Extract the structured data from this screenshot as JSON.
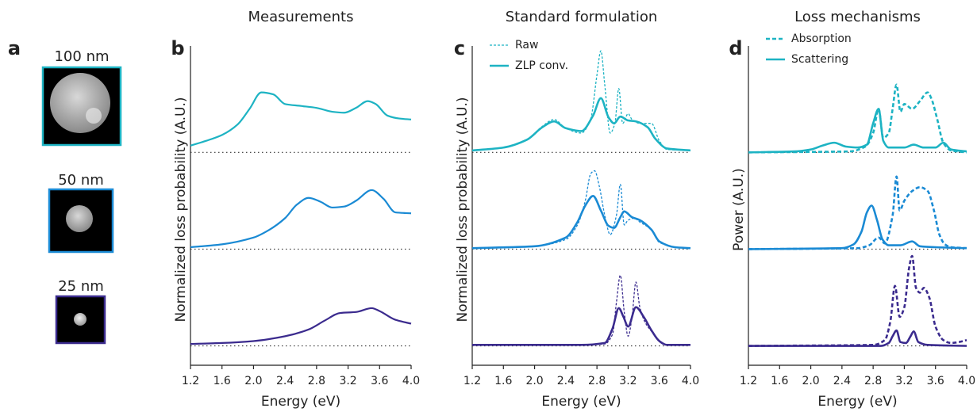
{
  "panel_a": {
    "panel_label": "a",
    "images": [
      {
        "caption": "100 nm",
        "color": "#1db3c3"
      },
      {
        "caption": "50 nm",
        "color": "#1a8ad4"
      },
      {
        "caption": "25 nm",
        "color": "#3b2b8e"
      }
    ]
  },
  "chart_data": [
    {
      "type": "line",
      "panel_label": "b",
      "title": "Measurements",
      "xlabel": "Energy (eV)",
      "ylabel": "Normalized loss probability (A.U.)",
      "xlim": [
        1.2,
        4.0
      ],
      "xticks": [
        1.2,
        1.6,
        {
          "value": 2.0,
          "label": "2.0"
        },
        2.4,
        2.8,
        3.2,
        3.6,
        {
          "value": 4.0,
          "label": "4.0"
        }
      ],
      "ylim": [
        -0.2,
        3.1
      ],
      "baselines": [
        0,
        1,
        2
      ],
      "series": [
        {
          "color": "#1db3c3",
          "style": "solid",
          "line_width": 2.2,
          "x": [
            1.2,
            1.4,
            1.6,
            1.8,
            1.95,
            2.1,
            2.25,
            2.4,
            2.6,
            2.8,
            3.0,
            3.15,
            3.3,
            3.45,
            3.55,
            3.7,
            3.85,
            4.0
          ],
          "values": [
            2.07,
            2.12,
            2.18,
            2.29,
            2.45,
            2.62,
            2.6,
            2.5,
            2.48,
            2.46,
            2.42,
            2.41,
            2.46,
            2.53,
            2.5,
            2.38,
            2.35,
            2.34
          ]
        },
        {
          "color": "#1a8ad4",
          "style": "solid",
          "line_width": 2.2,
          "x": [
            1.2,
            1.6,
            2.0,
            2.2,
            2.4,
            2.55,
            2.7,
            2.85,
            3.0,
            3.15,
            3.3,
            3.5,
            3.65,
            3.8,
            4.0
          ],
          "values": [
            1.02,
            1.05,
            1.12,
            1.2,
            1.32,
            1.46,
            1.53,
            1.49,
            1.43,
            1.44,
            1.5,
            1.61,
            1.52,
            1.38,
            1.37
          ]
        },
        {
          "color": "#3b2b8e",
          "style": "solid",
          "line_width": 2.2,
          "x": [
            1.2,
            1.6,
            2.0,
            2.4,
            2.7,
            2.9,
            3.1,
            3.3,
            3.5,
            3.6,
            3.8,
            4.0
          ],
          "values": [
            0.02,
            0.03,
            0.05,
            0.1,
            0.17,
            0.26,
            0.34,
            0.35,
            0.39,
            0.36,
            0.27,
            0.23
          ]
        }
      ]
    },
    {
      "type": "line",
      "panel_label": "c",
      "title": "Standard formulation",
      "xlabel": "Energy (eV)",
      "ylabel": "Normalized loss probability (A.U.)",
      "xlim": [
        1.2,
        4.0
      ],
      "xticks": [
        1.2,
        1.6,
        {
          "value": 2.0,
          "label": "2.0"
        },
        2.4,
        2.8,
        3.2,
        3.6,
        {
          "value": 4.0,
          "label": "4.0"
        }
      ],
      "ylim": [
        -0.2,
        3.1
      ],
      "baselines": [
        0,
        1,
        2
      ],
      "series": [
        {
          "name": "Raw",
          "color": "#1db3c3",
          "style": "dashed",
          "line_width": 1.3,
          "x": [
            1.2,
            1.6,
            1.9,
            2.1,
            2.25,
            2.4,
            2.6,
            2.72,
            2.8,
            2.85,
            2.9,
            2.97,
            3.03,
            3.08,
            3.13,
            3.2,
            3.25,
            3.35,
            3.5,
            3.6,
            3.7,
            4.0
          ],
          "values": [
            2.02,
            2.05,
            2.13,
            2.27,
            2.34,
            2.25,
            2.2,
            2.35,
            2.8,
            3.05,
            2.7,
            2.2,
            2.3,
            2.66,
            2.3,
            2.4,
            2.34,
            2.3,
            2.3,
            2.12,
            2.03,
            2.02
          ]
        },
        {
          "name": "ZLP conv.",
          "color": "#1db3c3",
          "style": "solid",
          "line_width": 2.6,
          "x": [
            1.2,
            1.6,
            1.9,
            2.1,
            2.25,
            2.4,
            2.6,
            2.75,
            2.85,
            2.95,
            3.02,
            3.1,
            3.2,
            3.3,
            3.45,
            3.55,
            3.7,
            4.0
          ],
          "values": [
            2.02,
            2.05,
            2.13,
            2.26,
            2.32,
            2.25,
            2.22,
            2.38,
            2.56,
            2.36,
            2.3,
            2.37,
            2.33,
            2.32,
            2.26,
            2.14,
            2.04,
            2.02
          ]
        },
        {
          "color": "#1a8ad4",
          "style": "dashed",
          "line_width": 1.3,
          "x": [
            1.2,
            2.0,
            2.4,
            2.55,
            2.65,
            2.72,
            2.77,
            2.83,
            2.9,
            2.97,
            3.05,
            3.1,
            3.15,
            3.2,
            3.28,
            3.35,
            3.5,
            3.6,
            3.8,
            4.0
          ],
          "values": [
            1.01,
            1.03,
            1.1,
            1.25,
            1.5,
            1.78,
            1.81,
            1.65,
            1.35,
            1.15,
            1.35,
            1.67,
            1.25,
            1.3,
            1.32,
            1.28,
            1.2,
            1.07,
            1.02,
            1.01
          ]
        },
        {
          "color": "#1a8ad4",
          "style": "solid",
          "line_width": 2.6,
          "x": [
            1.2,
            2.0,
            2.4,
            2.55,
            2.65,
            2.75,
            2.85,
            2.95,
            3.02,
            3.1,
            3.15,
            3.25,
            3.35,
            3.5,
            3.6,
            3.8,
            4.0
          ],
          "values": [
            1.01,
            1.03,
            1.12,
            1.28,
            1.45,
            1.55,
            1.4,
            1.24,
            1.22,
            1.33,
            1.39,
            1.33,
            1.3,
            1.2,
            1.08,
            1.02,
            1.01
          ]
        },
        {
          "color": "#3b2b8e",
          "style": "dashed",
          "line_width": 1.3,
          "x": [
            1.2,
            2.6,
            2.9,
            3.0,
            3.05,
            3.1,
            3.15,
            3.2,
            3.25,
            3.3,
            3.35,
            3.42,
            3.5,
            3.6,
            3.7,
            4.0
          ],
          "values": [
            0.01,
            0.01,
            0.02,
            0.12,
            0.45,
            0.73,
            0.35,
            0.1,
            0.3,
            0.66,
            0.4,
            0.24,
            0.15,
            0.05,
            0.01,
            0.01
          ]
        },
        {
          "color": "#3b2b8e",
          "style": "solid",
          "line_width": 2.6,
          "x": [
            1.2,
            2.6,
            2.9,
            3.0,
            3.08,
            3.14,
            3.2,
            3.3,
            3.4,
            3.5,
            3.6,
            3.7,
            4.0
          ],
          "values": [
            0.01,
            0.01,
            0.03,
            0.18,
            0.39,
            0.3,
            0.2,
            0.4,
            0.3,
            0.16,
            0.05,
            0.01,
            0.01
          ]
        }
      ]
    },
    {
      "type": "line",
      "panel_label": "d",
      "title": "Loss mechanisms",
      "xlabel": "Energy (eV)",
      "ylabel": "Power (A.U.)",
      "xlim": [
        1.2,
        4.0
      ],
      "xticks": [
        1.2,
        1.6,
        {
          "value": 2.0,
          "label": "2.0"
        },
        2.4,
        2.8,
        3.2,
        3.6,
        {
          "value": 4.0,
          "label": "4.0"
        }
      ],
      "ylim": [
        -0.2,
        3.1
      ],
      "baselines": [
        0,
        1,
        2
      ],
      "series": [
        {
          "name": "Absorption",
          "color": "#1db3c3",
          "style": "dashed",
          "line_width": 2.6,
          "x": [
            1.2,
            2.5,
            2.7,
            2.8,
            2.87,
            2.93,
            3.0,
            3.05,
            3.1,
            3.15,
            3.2,
            3.3,
            3.4,
            3.5,
            3.55,
            3.62,
            3.7,
            3.8,
            4.0
          ],
          "values": [
            2.0,
            2.01,
            2.06,
            2.2,
            2.45,
            2.15,
            2.2,
            2.45,
            2.7,
            2.42,
            2.5,
            2.45,
            2.53,
            2.62,
            2.55,
            2.35,
            2.1,
            2.02,
            2.0
          ]
        },
        {
          "name": "Scattering",
          "color": "#1db3c3",
          "style": "solid",
          "line_width": 2.6,
          "x": [
            1.2,
            1.8,
            2.0,
            2.15,
            2.3,
            2.45,
            2.6,
            2.72,
            2.8,
            2.87,
            2.93,
            3.0,
            3.2,
            3.32,
            3.45,
            3.6,
            3.7,
            3.8,
            4.0
          ],
          "values": [
            2.0,
            2.01,
            2.03,
            2.07,
            2.1,
            2.06,
            2.05,
            2.08,
            2.3,
            2.45,
            2.12,
            2.05,
            2.05,
            2.08,
            2.05,
            2.05,
            2.1,
            2.03,
            2.01
          ]
        },
        {
          "color": "#1a8ad4",
          "style": "dashed",
          "line_width": 2.6,
          "x": [
            1.2,
            2.6,
            2.75,
            2.87,
            2.95,
            3.05,
            3.1,
            3.14,
            3.2,
            3.3,
            3.4,
            3.5,
            3.58,
            3.65,
            3.72,
            3.8,
            4.0
          ],
          "values": [
            1.0,
            1.01,
            1.04,
            1.12,
            1.06,
            1.35,
            1.75,
            1.4,
            1.5,
            1.6,
            1.64,
            1.6,
            1.4,
            1.15,
            1.05,
            1.02,
            1.01
          ]
        },
        {
          "color": "#1a8ad4",
          "style": "solid",
          "line_width": 2.6,
          "x": [
            1.2,
            2.4,
            2.55,
            2.65,
            2.72,
            2.78,
            2.85,
            2.92,
            3.0,
            3.15,
            3.3,
            3.4,
            3.6,
            4.0
          ],
          "values": [
            1.0,
            1.01,
            1.05,
            1.18,
            1.38,
            1.45,
            1.3,
            1.1,
            1.04,
            1.04,
            1.08,
            1.03,
            1.02,
            1.01
          ]
        },
        {
          "color": "#3b2b8e",
          "style": "dashed",
          "line_width": 2.6,
          "x": [
            1.2,
            2.8,
            2.95,
            3.02,
            3.08,
            3.14,
            3.2,
            3.26,
            3.3,
            3.35,
            3.4,
            3.45,
            3.52,
            3.6,
            3.7,
            3.8,
            3.9,
            4.0
          ],
          "values": [
            0.0,
            0.01,
            0.06,
            0.25,
            0.62,
            0.3,
            0.4,
            0.8,
            0.93,
            0.6,
            0.55,
            0.6,
            0.5,
            0.2,
            0.06,
            0.03,
            0.04,
            0.06
          ]
        },
        {
          "color": "#3b2b8e",
          "style": "solid",
          "line_width": 2.6,
          "x": [
            1.2,
            2.9,
            3.0,
            3.05,
            3.1,
            3.15,
            3.22,
            3.28,
            3.32,
            3.38,
            3.5,
            4.0
          ],
          "values": [
            0.0,
            0.0,
            0.03,
            0.1,
            0.16,
            0.04,
            0.03,
            0.1,
            0.15,
            0.04,
            0.01,
            0.0
          ]
        }
      ]
    }
  ]
}
